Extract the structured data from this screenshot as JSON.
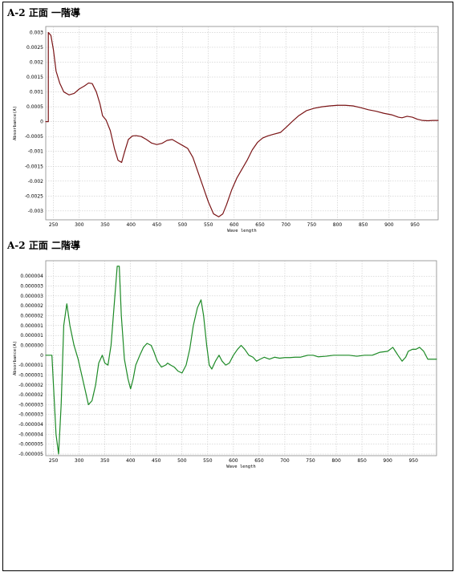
{
  "figures": [
    {
      "id": "c1",
      "title": "A-2 正面 一階導"
    },
    {
      "id": "c2",
      "title": "A-2 正面 二階導"
    }
  ],
  "chart_data": [
    {
      "type": "line",
      "title": "A-2 正面 一階導",
      "xlabel": "Wave length",
      "ylabel": "Absorbance(A)",
      "xlim": [
        235,
        995
      ],
      "ylim": [
        -0.0033,
        0.0032
      ],
      "xticks": [
        250,
        300,
        350,
        400,
        450,
        500,
        550,
        600,
        650,
        700,
        750,
        800,
        850,
        900,
        950
      ],
      "yticks": [
        0.003,
        0.0025,
        0.002,
        0.0015,
        0.001,
        0.0005,
        0,
        -0.0005,
        -0.001,
        -0.0015,
        -0.002,
        -0.0025,
        -0.003
      ],
      "ytick_labels": [
        "0.003",
        "0.0025",
        "0.002",
        "0.0015",
        "0.001",
        "0.0005",
        "0",
        "-0.0005",
        "-0.001",
        "-0.0015",
        "-0.002",
        "-0.0025",
        "-0.003"
      ],
      "grid": true,
      "color": "#7a1416",
      "series": [
        {
          "values": [
            [
              235,
              0
            ],
            [
              240,
              0
            ],
            [
              240,
              0.003
            ],
            [
              245,
              0.0029
            ],
            [
              250,
              0.0024
            ],
            [
              255,
              0.0017
            ],
            [
              262,
              0.0013
            ],
            [
              270,
              0.001
            ],
            [
              280,
              0.0009
            ],
            [
              290,
              0.00095
            ],
            [
              300,
              0.0011
            ],
            [
              310,
              0.0012
            ],
            [
              318,
              0.0013
            ],
            [
              325,
              0.00128
            ],
            [
              333,
              0.001
            ],
            [
              340,
              0.0006
            ],
            [
              345,
              0.0002
            ],
            [
              352,
              5e-05
            ],
            [
              360,
              -0.0003
            ],
            [
              368,
              -0.0009
            ],
            [
              375,
              -0.0013
            ],
            [
              382,
              -0.00137
            ],
            [
              388,
              -0.001
            ],
            [
              395,
              -0.0006
            ],
            [
              403,
              -0.00048
            ],
            [
              410,
              -0.00047
            ],
            [
              420,
              -0.0005
            ],
            [
              430,
              -0.0006
            ],
            [
              440,
              -0.00072
            ],
            [
              450,
              -0.00077
            ],
            [
              460,
              -0.00073
            ],
            [
              470,
              -0.00063
            ],
            [
              480,
              -0.0006
            ],
            [
              490,
              -0.0007
            ],
            [
              500,
              -0.0008
            ],
            [
              510,
              -0.0009
            ],
            [
              520,
              -0.0012
            ],
            [
              530,
              -0.0017
            ],
            [
              540,
              -0.0022
            ],
            [
              550,
              -0.0027
            ],
            [
              560,
              -0.0031
            ],
            [
              570,
              -0.0032
            ],
            [
              578,
              -0.0031
            ],
            [
              585,
              -0.0028
            ],
            [
              595,
              -0.0023
            ],
            [
              605,
              -0.0019
            ],
            [
              615,
              -0.0016
            ],
            [
              625,
              -0.0013
            ],
            [
              635,
              -0.00095
            ],
            [
              645,
              -0.0007
            ],
            [
              655,
              -0.00055
            ],
            [
              665,
              -0.00048
            ],
            [
              675,
              -0.00043
            ],
            [
              690,
              -0.00036
            ],
            [
              700,
              -0.0002
            ],
            [
              712,
              0
            ],
            [
              725,
              0.0002
            ],
            [
              740,
              0.00037
            ],
            [
              755,
              0.00045
            ],
            [
              770,
              0.0005
            ],
            [
              785,
              0.00053
            ],
            [
              800,
              0.00055
            ],
            [
              815,
              0.00055
            ],
            [
              830,
              0.00053
            ],
            [
              845,
              0.00047
            ],
            [
              860,
              0.0004
            ],
            [
              875,
              0.00035
            ],
            [
              890,
              0.00028
            ],
            [
              905,
              0.00023
            ],
            [
              918,
              0.00015
            ],
            [
              925,
              0.00013
            ],
            [
              935,
              0.00018
            ],
            [
              945,
              0.00015
            ],
            [
              955,
              8e-05
            ],
            [
              965,
              4e-05
            ],
            [
              975,
              3e-05
            ],
            [
              985,
              4e-05
            ],
            [
              995,
              4e-05
            ]
          ]
        }
      ]
    },
    {
      "type": "line",
      "title": "A-2 正面 二階導",
      "xlabel": "Wave length",
      "ylabel": "Absorbance(A)",
      "xlim": [
        235,
        995
      ],
      "ylim": [
        -5.08e-06,
        4.78e-06
      ],
      "xticks": [
        250,
        300,
        350,
        400,
        450,
        500,
        550,
        600,
        650,
        700,
        750,
        800,
        850,
        900,
        950
      ],
      "yticks": [
        4e-06,
        3.5e-06,
        3e-06,
        2.5e-06,
        2e-06,
        1.5e-06,
        1e-06,
        5e-07,
        0,
        -5e-07,
        -1e-06,
        -1.5e-06,
        -2e-06,
        -2.5e-06,
        -3e-06,
        -3.5e-06,
        -4e-06,
        -4.5e-06,
        -5e-06
      ],
      "ytick_labels": [
        "0.000004",
        "0.000003",
        "0.000003",
        "0.000002",
        "0.000002",
        "0.000001",
        "0.000001",
        "0.000000",
        "0",
        "-0.000001",
        "-0.000001",
        "-0.000002",
        "-0.000002",
        "-0.000003",
        "-0.000003",
        "-0.000004",
        "-0.000004",
        "-0.000005",
        "-0.000005"
      ],
      "grid": true,
      "color": "#1d8a26",
      "series": [
        {
          "values": [
            [
              235,
              0
            ],
            [
              247,
              0
            ],
            [
              250,
              -1.5e-06
            ],
            [
              255,
              -4e-06
            ],
            [
              260,
              -5e-06
            ],
            [
              265,
              -2.5e-06
            ],
            [
              270,
              1.5e-06
            ],
            [
              276,
              2.6e-06
            ],
            [
              282,
              1.5e-06
            ],
            [
              290,
              5e-07
            ],
            [
              298,
              -2e-07
            ],
            [
              305,
              -1e-06
            ],
            [
              312,
              -1.8e-06
            ],
            [
              318,
              -2.5e-06
            ],
            [
              325,
              -2.3e-06
            ],
            [
              332,
              -1.5e-06
            ],
            [
              338,
              -4e-07
            ],
            [
              345,
              0
            ],
            [
              350,
              -4e-07
            ],
            [
              356,
              -5e-07
            ],
            [
              362,
              5e-07
            ],
            [
              368,
              2.5e-06
            ],
            [
              374,
              4.5e-06
            ],
            [
              378,
              4.5e-06
            ],
            [
              382,
              2e-06
            ],
            [
              388,
              -2e-07
            ],
            [
              395,
              -1.2e-06
            ],
            [
              400,
              -1.7e-06
            ],
            [
              405,
              -1.2e-06
            ],
            [
              410,
              -5e-07
            ],
            [
              418,
              0
            ],
            [
              425,
              4e-07
            ],
            [
              432,
              6e-07
            ],
            [
              440,
              5e-07
            ],
            [
              445,
              2e-07
            ],
            [
              452,
              -3e-07
            ],
            [
              460,
              -6e-07
            ],
            [
              468,
              -5e-07
            ],
            [
              472,
              -4e-07
            ],
            [
              478,
              -5e-07
            ],
            [
              485,
              -6e-07
            ],
            [
              492,
              -8e-07
            ],
            [
              500,
              -9e-07
            ],
            [
              508,
              -5e-07
            ],
            [
              515,
              3e-07
            ],
            [
              522,
              1.5e-06
            ],
            [
              530,
              2.4e-06
            ],
            [
              537,
              2.8e-06
            ],
            [
              542,
              2e-06
            ],
            [
              548,
              5e-07
            ],
            [
              553,
              -5e-07
            ],
            [
              558,
              -7e-07
            ],
            [
              565,
              -3e-07
            ],
            [
              572,
              0
            ],
            [
              578,
              -3e-07
            ],
            [
              585,
              -5e-07
            ],
            [
              592,
              -4e-07
            ],
            [
              600,
              0
            ],
            [
              608,
              3e-07
            ],
            [
              615,
              5e-07
            ],
            [
              622,
              3e-07
            ],
            [
              630,
              0
            ],
            [
              638,
              -1e-07
            ],
            [
              645,
              -3e-07
            ],
            [
              652,
              -2e-07
            ],
            [
              660,
              -1e-07
            ],
            [
              670,
              -2e-07
            ],
            [
              680,
              -1e-07
            ],
            [
              690,
              -1.5e-07
            ],
            [
              700,
              -1.2e-07
            ],
            [
              710,
              -1.2e-07
            ],
            [
              720,
              -1e-07
            ],
            [
              730,
              -1e-07
            ],
            [
              745,
              0
            ],
            [
              755,
              0
            ],
            [
              765,
              -8e-08
            ],
            [
              780,
              -5e-08
            ],
            [
              795,
              0
            ],
            [
              810,
              0
            ],
            [
              825,
              0
            ],
            [
              840,
              -5e-08
            ],
            [
              855,
              0
            ],
            [
              870,
              0
            ],
            [
              885,
              1.5e-07
            ],
            [
              900,
              2e-07
            ],
            [
              910,
              4e-07
            ],
            [
              915,
              2e-07
            ],
            [
              920,
              0
            ],
            [
              928,
              -3e-07
            ],
            [
              935,
              -1e-07
            ],
            [
              940,
              2e-07
            ],
            [
              948,
              3e-07
            ],
            [
              955,
              3e-07
            ],
            [
              962,
              4e-07
            ],
            [
              970,
              2e-07
            ],
            [
              978,
              -2e-07
            ],
            [
              985,
              -2e-07
            ],
            [
              995,
              -2e-07
            ]
          ]
        }
      ]
    }
  ]
}
